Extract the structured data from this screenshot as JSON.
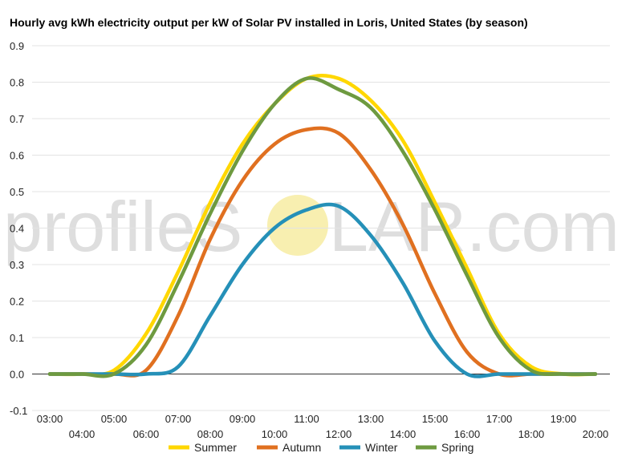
{
  "chart_data": {
    "type": "line",
    "title": "Hourly avg kWh electricity output per kW of Solar PV installed in Loris, United States (by season)",
    "xlabel": "",
    "ylabel": "",
    "ylim": [
      -0.1,
      0.9
    ],
    "yticks": [
      -0.1,
      0.0,
      0.1,
      0.2,
      0.3,
      0.4,
      0.5,
      0.6,
      0.7,
      0.8,
      0.9
    ],
    "ytick_labels": [
      "-0.1",
      "0.0",
      "0.1",
      "0.2",
      "0.3",
      "0.4",
      "0.5",
      "0.6",
      "0.7",
      "0.8",
      "0.9"
    ],
    "categories": [
      "03:00",
      "04:00",
      "05:00",
      "06:00",
      "07:00",
      "08:00",
      "09:00",
      "10:00",
      "11:00",
      "12:00",
      "13:00",
      "14:00",
      "15:00",
      "16:00",
      "17:00",
      "18:00",
      "19:00",
      "20:00"
    ],
    "grid": true,
    "legend_position": "bottom",
    "series": [
      {
        "name": "Summer",
        "color": "#FFD700",
        "values": [
          0.0,
          0.0,
          0.01,
          0.11,
          0.28,
          0.47,
          0.63,
          0.74,
          0.81,
          0.81,
          0.75,
          0.64,
          0.47,
          0.29,
          0.11,
          0.02,
          0.0,
          0.0
        ]
      },
      {
        "name": "Autumn",
        "color": "#E07020",
        "values": [
          0.0,
          0.0,
          0.0,
          0.01,
          0.16,
          0.37,
          0.53,
          0.63,
          0.67,
          0.66,
          0.56,
          0.41,
          0.22,
          0.06,
          0.0,
          0.0,
          0.0,
          0.0
        ]
      },
      {
        "name": "Winter",
        "color": "#2590B8",
        "values": [
          0.0,
          0.0,
          0.0,
          0.0,
          0.02,
          0.16,
          0.3,
          0.4,
          0.45,
          0.46,
          0.38,
          0.25,
          0.09,
          0.0,
          0.0,
          0.0,
          0.0,
          0.0
        ]
      },
      {
        "name": "Spring",
        "color": "#6E9A40",
        "values": [
          0.0,
          0.0,
          0.0,
          0.08,
          0.25,
          0.44,
          0.61,
          0.74,
          0.81,
          0.78,
          0.73,
          0.61,
          0.45,
          0.27,
          0.1,
          0.01,
          0.0,
          0.0
        ]
      }
    ]
  },
  "watermark": {
    "text_left": "profileS",
    "text_right": "LAR.com",
    "sun_color": "#F8EFB0"
  }
}
